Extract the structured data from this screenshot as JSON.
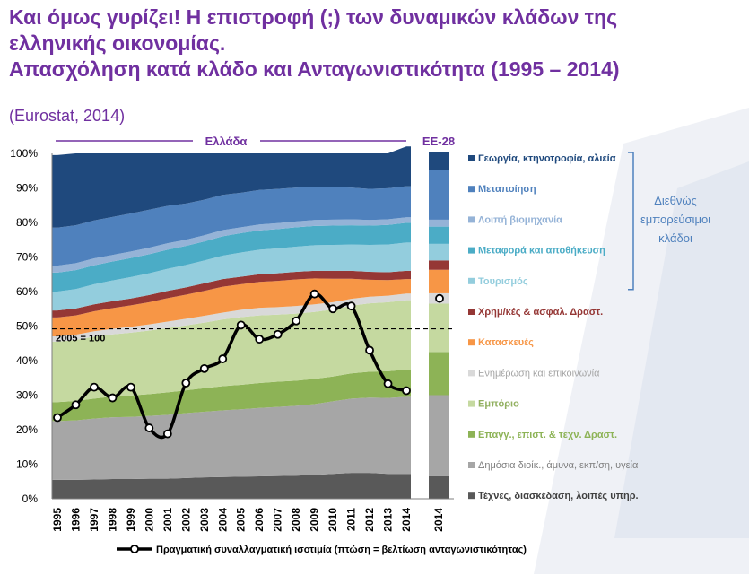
{
  "header": {
    "title_line1": "Και όμως γυρίζει! Η επιστροφή (;) των δυναμικών κλάδων της",
    "title_line2": "ελληνικής οικονομίας.",
    "title_line3": "Απασχόληση κατά κλάδο και Ανταγωνιστικότητα (1995 – 2014)",
    "subtitle": "(Eurostat, 2014)"
  },
  "chart_data": {
    "type": "area",
    "section_labels": {
      "greece": "Ελλάδα",
      "eu": "ΕΕ-28"
    },
    "x": [
      "1995",
      "1996",
      "1997",
      "1998",
      "1999",
      "2000",
      "2001",
      "2002",
      "2003",
      "2004",
      "2005",
      "2006",
      "2007",
      "2008",
      "2009",
      "2010",
      "2011",
      "2012",
      "2013",
      "2014"
    ],
    "eu_x": "2014",
    "ylim": [
      0,
      100
    ],
    "y_ticks": [
      "0%",
      "10%",
      "20%",
      "30%",
      "40%",
      "50%",
      "60%",
      "70%",
      "80%",
      "90%",
      "100%"
    ],
    "series": [
      {
        "name": "Τέχνες, διασκέδαση, λοιπές υπηρ.",
        "color": "#595959",
        "values": [
          5.5,
          5.5,
          5.6,
          5.7,
          5.7,
          5.8,
          5.8,
          6.0,
          6.2,
          6.3,
          6.4,
          6.5,
          6.6,
          6.7,
          6.9,
          7.2,
          7.5,
          7.5,
          7.2,
          7.2
        ],
        "eu_value": 6.5
      },
      {
        "name": "Δημόσια διοίκ., άμυνα, εκπ/ση, υγεία",
        "color": "#a6a6a6",
        "values": [
          17.0,
          17.2,
          17.6,
          17.9,
          18.0,
          18.2,
          18.5,
          18.8,
          19.0,
          19.3,
          19.5,
          19.8,
          20.0,
          20.2,
          20.5,
          21.0,
          21.5,
          21.8,
          22.0,
          22.3
        ],
        "eu_value": 23.5
      },
      {
        "name": "Επαγγ., επιστ. & τεχν. Δραστ.",
        "color": "#8db356",
        "values": [
          5.5,
          5.6,
          5.8,
          6.0,
          6.2,
          6.3,
          6.5,
          6.6,
          6.8,
          7.0,
          7.1,
          7.2,
          7.3,
          7.3,
          7.3,
          7.2,
          7.3,
          7.5,
          7.7,
          7.9
        ],
        "eu_value": 12.5
      },
      {
        "name": "Εμπόριο",
        "color": "#c5d9a0",
        "values": [
          17.5,
          17.7,
          17.9,
          18.0,
          18.2,
          18.4,
          18.6,
          18.8,
          19.0,
          19.3,
          19.6,
          19.6,
          19.4,
          19.4,
          19.4,
          19.4,
          19.6,
          19.8,
          20.0,
          20.1
        ],
        "eu_value": 14.0
      },
      {
        "name": "Ενημέρωση και επικοινωνία",
        "color": "#d9d9d9",
        "values": [
          1.5,
          1.5,
          1.6,
          1.6,
          1.7,
          1.8,
          1.9,
          1.9,
          2.0,
          2.0,
          2.1,
          2.2,
          2.2,
          2.2,
          2.2,
          2.1,
          2.0,
          1.9,
          1.9,
          1.9
        ],
        "eu_value": 3.0
      },
      {
        "name": "Κατασκευές",
        "color": "#f79646",
        "values": [
          5.5,
          5.6,
          5.8,
          6.0,
          6.2,
          6.4,
          6.8,
          7.0,
          7.2,
          7.5,
          7.4,
          7.5,
          7.6,
          7.7,
          7.5,
          6.8,
          5.8,
          4.9,
          4.5,
          4.2
        ],
        "eu_value": 6.8
      },
      {
        "name": "Χρημ/κές & ασφαλ. Δραστ.",
        "color": "#953735",
        "values": [
          2.0,
          2.0,
          2.0,
          2.0,
          2.0,
          2.1,
          2.1,
          2.1,
          2.2,
          2.2,
          2.2,
          2.2,
          2.2,
          2.2,
          2.2,
          2.3,
          2.3,
          2.3,
          2.3,
          2.4
        ],
        "eu_value": 2.7
      },
      {
        "name": "Τουρισμός",
        "color": "#93cddd",
        "values": [
          5.5,
          5.6,
          5.8,
          6.0,
          6.2,
          6.3,
          6.4,
          6.5,
          6.6,
          6.8,
          7.0,
          7.1,
          7.2,
          7.3,
          7.4,
          7.5,
          7.6,
          7.8,
          8.0,
          8.2
        ],
        "eu_value": 4.8
      },
      {
        "name": "Μεταφορά και αποθήκευση",
        "color": "#4bacc6",
        "values": [
          5.5,
          5.5,
          5.5,
          5.5,
          5.5,
          5.5,
          5.5,
          5.5,
          5.5,
          5.6,
          5.6,
          5.6,
          5.6,
          5.6,
          5.6,
          5.6,
          5.6,
          5.6,
          5.7,
          5.7
        ],
        "eu_value": 5.0
      },
      {
        "name": "Λοιπή βιομηχανία",
        "color": "#95b3d7",
        "values": [
          2.0,
          2.0,
          2.0,
          1.9,
          1.9,
          1.9,
          1.9,
          1.8,
          1.8,
          1.8,
          1.7,
          1.7,
          1.7,
          1.7,
          1.7,
          1.7,
          1.7,
          1.6,
          1.6,
          1.6
        ],
        "eu_value": 2.0
      },
      {
        "name": "Μεταποίηση",
        "color": "#4f81bd",
        "values": [
          11.0,
          11.0,
          11.0,
          11.0,
          11.0,
          11.0,
          10.8,
          10.5,
          10.3,
          10.2,
          10.0,
          10.0,
          9.9,
          9.8,
          9.6,
          9.4,
          9.2,
          9.0,
          9.0,
          9.0
        ],
        "eu_value": 14.5
      },
      {
        "name": "Γεωργία, κτηνοτροφία, αλιεία",
        "color": "#1f497d",
        "values": [
          21.0,
          20.8,
          19.4,
          18.4,
          17.4,
          16.3,
          15.2,
          14.5,
          13.4,
          12.0,
          11.4,
          10.6,
          10.3,
          9.9,
          9.7,
          9.8,
          9.9,
          10.3,
          10.1,
          11.5
        ],
        "eu_value": 5.2
      }
    ],
    "line": {
      "name": "Πραγματική συναλλαγματική ισοτιμία (πτώση = βελτίωση ανταγωνιστικότητας)",
      "values": [
        23.5,
        27.2,
        32.3,
        29.2,
        32.3,
        20.5,
        18.8,
        33.5,
        37.7,
        40.5,
        50.3,
        46.2,
        47.6,
        51.5,
        59.3,
        55.0,
        55.8,
        43.0,
        33.3,
        31.3
      ],
      "eu_value": 58.0,
      "color": "#000000"
    },
    "reference_line": {
      "label": "2005 = 100",
      "value": 49.2
    },
    "bracket_label_lines": [
      "Διεθνώς",
      "εμπορεύσιμοι",
      "κλάδοι"
    ],
    "bracket_series": [
      "Γεωργία, κτηνοτροφία, αλιεία",
      "Μεταποίηση",
      "Λοιπή βιομηχανία",
      "Μεταφορά και αποθήκευση",
      "Τουρισμός"
    ],
    "legend_placement": "right",
    "grid": false
  }
}
